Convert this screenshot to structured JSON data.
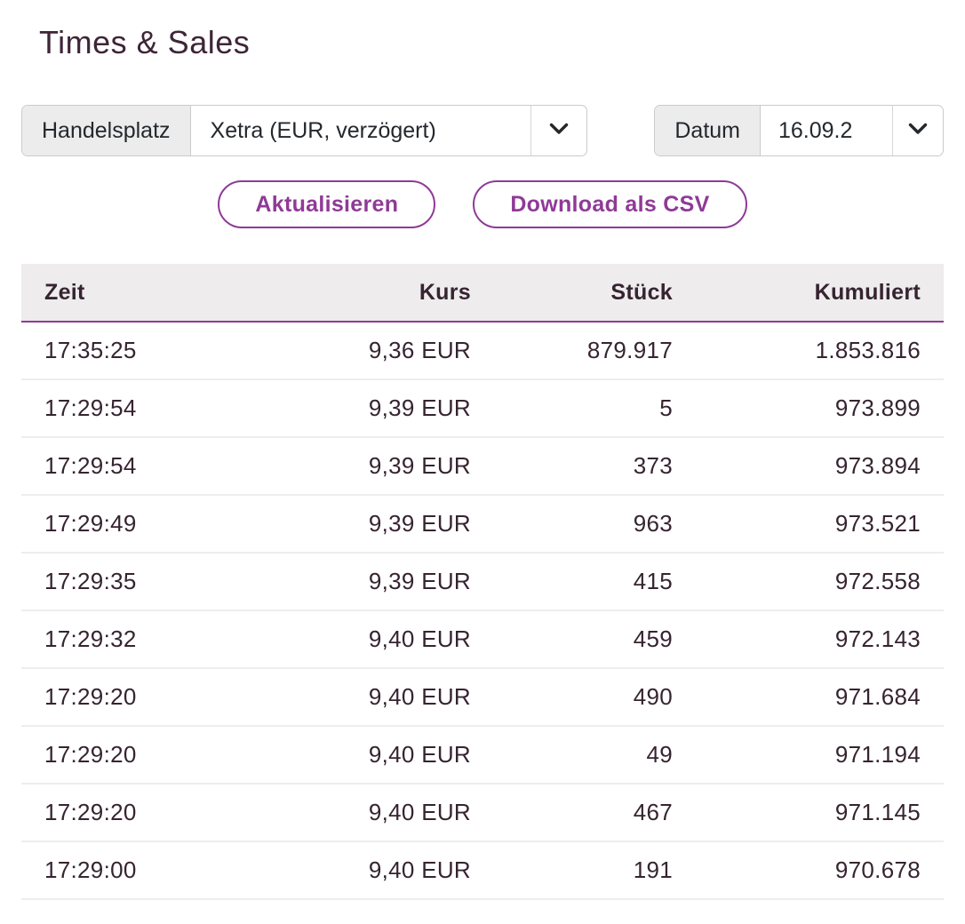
{
  "title": "Times & Sales",
  "colors": {
    "accent_purple": "#8f3a97",
    "title_plum": "#3e2537",
    "table_text": "#362430",
    "control_text": "#23282d",
    "label_bg": "#ececec",
    "header_bg": "#eeeced"
  },
  "controls": {
    "handelsplatz": {
      "label": "Handelsplatz",
      "value": "Xetra (EUR, verzögert)",
      "chevron_icon": "chevron-down-icon"
    },
    "datum": {
      "label": "Datum",
      "value": "16.09.2",
      "chevron_icon": "chevron-down-icon"
    }
  },
  "buttons": {
    "refresh": "Aktualisieren",
    "download": "Download als CSV"
  },
  "table": {
    "headers": [
      "Zeit",
      "Kurs",
      "Stück",
      "Kumuliert"
    ],
    "rows": [
      [
        "17:35:25",
        "9,36 EUR",
        "879.917",
        "1.853.816"
      ],
      [
        "17:29:54",
        "9,39 EUR",
        "5",
        "973.899"
      ],
      [
        "17:29:54",
        "9,39 EUR",
        "373",
        "973.894"
      ],
      [
        "17:29:49",
        "9,39 EUR",
        "963",
        "973.521"
      ],
      [
        "17:29:35",
        "9,39 EUR",
        "415",
        "972.558"
      ],
      [
        "17:29:32",
        "9,40 EUR",
        "459",
        "972.143"
      ],
      [
        "17:29:20",
        "9,40 EUR",
        "490",
        "971.684"
      ],
      [
        "17:29:20",
        "9,40 EUR",
        "49",
        "971.194"
      ],
      [
        "17:29:20",
        "9,40 EUR",
        "467",
        "971.145"
      ],
      [
        "17:29:00",
        "9,40 EUR",
        "191",
        "970.678"
      ]
    ]
  }
}
